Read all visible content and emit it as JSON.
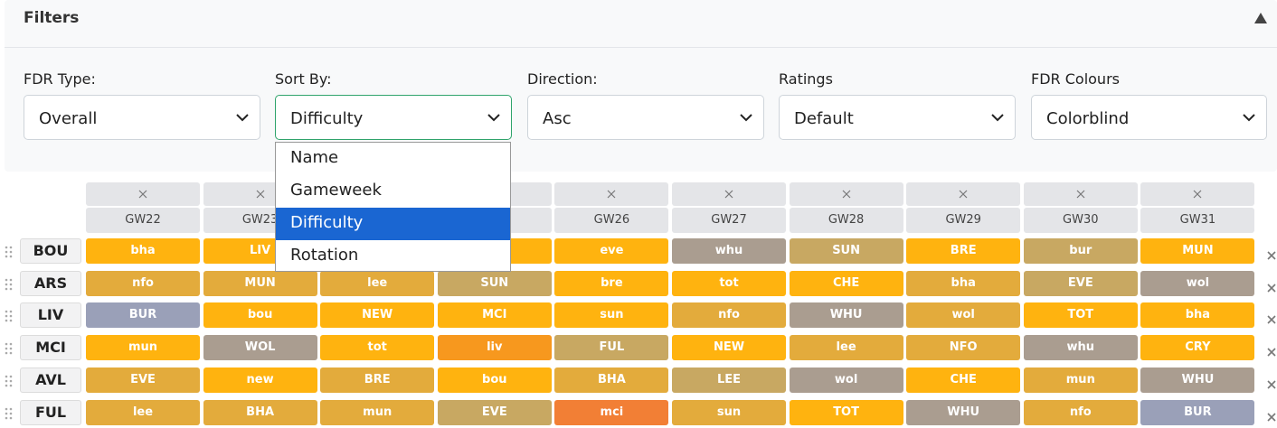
{
  "filters": {
    "title": "Filters",
    "fields": [
      {
        "label": "FDR Type:",
        "value": "Overall"
      },
      {
        "label": "Sort By:",
        "value": "Difficulty"
      },
      {
        "label": "Direction:",
        "value": "Asc"
      },
      {
        "label": "Ratings",
        "value": "Default"
      },
      {
        "label": "FDR Colours",
        "value": "Colorblind"
      }
    ]
  },
  "sort_menu": {
    "options": [
      "Name",
      "Gameweek",
      "Difficulty",
      "Rotation"
    ]
  },
  "table": {
    "columns": [
      "GW22",
      "GW23",
      null,
      null,
      "GW26",
      "GW27",
      "GW28",
      "GW29",
      "GW30",
      "GW31"
    ],
    "rows": [
      {
        "team": "BOU",
        "fixtures": [
          "bha",
          "LIV",
          null,
          null,
          "eve",
          "whu",
          "SUN",
          "BRE",
          "bur",
          "MUN"
        ],
        "colors": [
          "#ffb30f",
          "#ffb30f",
          null,
          null,
          "#ffb30f",
          "#aa9d90",
          "#c8a862",
          "#ffb30f",
          "#c8a862",
          "#ffb30f"
        ]
      },
      {
        "team": "ARS",
        "fixtures": [
          "nfo",
          "MUN",
          "lee",
          "SUN",
          "bre",
          "tot",
          "CHE",
          "bha",
          "EVE",
          "wol"
        ],
        "colors": [
          "#e3ab3c",
          "#e3ab3c",
          "#e3ab3c",
          "#c8a862",
          "#ffb30f",
          "#ffb30f",
          "#ffb30f",
          "#e3ab3c",
          "#c8a862",
          "#aa9d90"
        ]
      },
      {
        "team": "LIV",
        "fixtures": [
          "BUR",
          "bou",
          "NEW",
          "MCI",
          "sun",
          "nfo",
          "WHU",
          "wol",
          "TOT",
          "bha"
        ],
        "colors": [
          "#9aa0b8",
          "#ffb30f",
          "#ffb30f",
          "#ffb30f",
          "#ffb30f",
          "#e3ab3c",
          "#aa9d90",
          "#e3ab3c",
          "#ffb30f",
          "#ffb30f"
        ]
      },
      {
        "team": "MCI",
        "fixtures": [
          "mun",
          "WOL",
          "tot",
          "liv",
          "FUL",
          "NEW",
          "lee",
          "NFO",
          "whu",
          "CRY"
        ],
        "colors": [
          "#ffb30f",
          "#aa9d90",
          "#ffb30f",
          "#f7981e",
          "#c8a862",
          "#ffb30f",
          "#e3ab3c",
          "#e3ab3c",
          "#aa9d90",
          "#ffb30f"
        ]
      },
      {
        "team": "AVL",
        "fixtures": [
          "EVE",
          "new",
          "BRE",
          "bou",
          "BHA",
          "LEE",
          "wol",
          "CHE",
          "mun",
          "WHU"
        ],
        "colors": [
          "#e3ab3c",
          "#ffb30f",
          "#e3ab3c",
          "#ffb30f",
          "#e3ab3c",
          "#c8a862",
          "#aa9d90",
          "#ffb30f",
          "#e3ab3c",
          "#aa9d90"
        ]
      },
      {
        "team": "FUL",
        "fixtures": [
          "lee",
          "BHA",
          "mun",
          "EVE",
          "mci",
          "sun",
          "TOT",
          "WHU",
          "nfo",
          "BUR"
        ],
        "colors": [
          "#e3ab3c",
          "#e3ab3c",
          "#e3ab3c",
          "#c8a862",
          "#f27f35",
          "#e3ab3c",
          "#ffb30f",
          "#aa9d90",
          "#e3ab3c",
          "#9aa0b8"
        ]
      }
    ]
  }
}
